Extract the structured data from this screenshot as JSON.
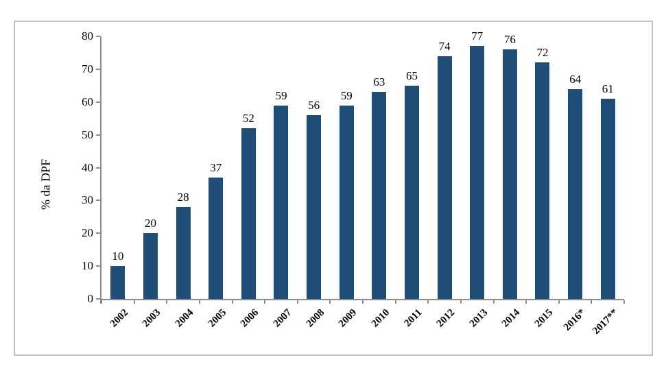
{
  "chart_data": {
    "type": "bar",
    "title": "",
    "xlabel": "",
    "ylabel": "% da DPF",
    "categories": [
      "2002",
      "2003",
      "2004",
      "2005",
      "2006",
      "2007",
      "2008",
      "2009",
      "2010",
      "2011",
      "2012",
      "2013",
      "2014",
      "2015",
      "2016*",
      "2017**"
    ],
    "values": [
      10,
      20,
      28,
      37,
      52,
      59,
      56,
      59,
      63,
      65,
      74,
      77,
      76,
      72,
      64,
      61
    ],
    "bar_labels": [
      "10",
      "20",
      "28",
      "37",
      "52",
      "59",
      "56",
      "59",
      "63",
      "65",
      "74",
      "77",
      "76",
      "72",
      "64",
      "61"
    ],
    "ylim": [
      0,
      80
    ],
    "yticks": [
      0,
      10,
      20,
      30,
      40,
      50,
      60,
      70,
      80
    ],
    "grid": false,
    "legend": false,
    "bar_color": "#1F4E78",
    "axis_color": "#8C8C8C",
    "frame_border_color": "#C3C3C3",
    "text_color": "#000000",
    "background_color": "#FFFFFF"
  }
}
